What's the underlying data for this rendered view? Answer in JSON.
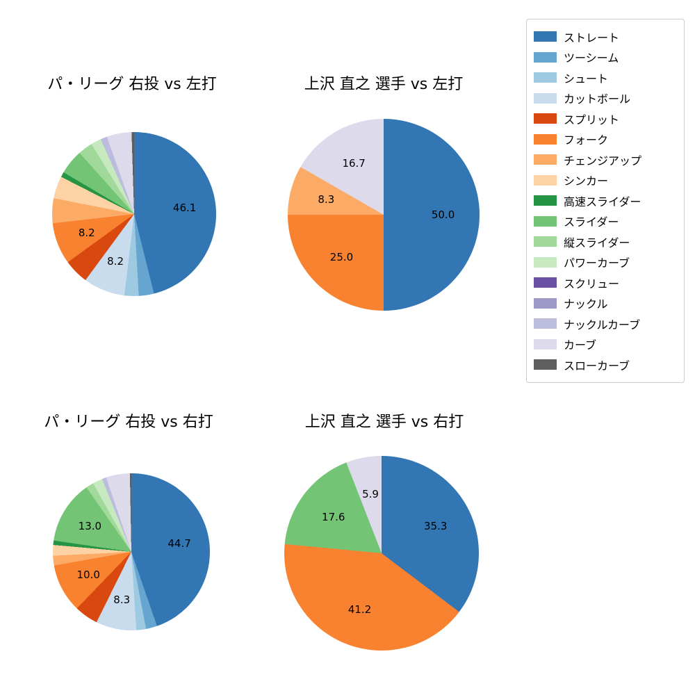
{
  "legend": {
    "items": [
      {
        "label": "ストレート",
        "color": "#3276b4"
      },
      {
        "label": "ツーシーム",
        "color": "#66a5cf"
      },
      {
        "label": "シュート",
        "color": "#9ecae1"
      },
      {
        "label": "カットボール",
        "color": "#c9dcee"
      },
      {
        "label": "スプリット",
        "color": "#d9480f"
      },
      {
        "label": "フォーク",
        "color": "#f8822f"
      },
      {
        "label": "チェンジアップ",
        "color": "#fbab66"
      },
      {
        "label": "シンカー",
        "color": "#fdd3a6"
      },
      {
        "label": "高速スライダー",
        "color": "#259444"
      },
      {
        "label": "スライダー",
        "color": "#74c476"
      },
      {
        "label": "縦スライダー",
        "color": "#a1d99b"
      },
      {
        "label": "パワーカーブ",
        "color": "#c7e9c0"
      },
      {
        "label": "スクリュー",
        "color": "#6a51a3"
      },
      {
        "label": "ナックル",
        "color": "#9e9ac8"
      },
      {
        "label": "ナックルカーブ",
        "color": "#bcbddc"
      },
      {
        "label": "カーブ",
        "color": "#dcdaeb"
      },
      {
        "label": "スローカーブ",
        "color": "#5e5e5e"
      }
    ]
  },
  "chart_data": [
    {
      "type": "pie",
      "title": "パ・リーグ 右投 vs 左打",
      "start_angle_deg": 90,
      "direction": "clockwise",
      "label_min_pct": 5,
      "slices": [
        {
          "name": "ストレート",
          "value": 46.1
        },
        {
          "name": "ツーシーム",
          "value": 3.0
        },
        {
          "name": "シュート",
          "value": 2.8
        },
        {
          "name": "カットボール",
          "value": 8.2
        },
        {
          "name": "スプリット",
          "value": 4.9
        },
        {
          "name": "フォーク",
          "value": 8.2
        },
        {
          "name": "チェンジアップ",
          "value": 4.9
        },
        {
          "name": "シンカー",
          "value": 4.4
        },
        {
          "name": "高速スライダー",
          "value": 1.0
        },
        {
          "name": "スライダー",
          "value": 4.9
        },
        {
          "name": "縦スライダー",
          "value": 2.9
        },
        {
          "name": "パワーカーブ",
          "value": 2.0
        },
        {
          "name": "ナックルカーブ",
          "value": 1.3
        },
        {
          "name": "カーブ",
          "value": 4.9
        },
        {
          "name": "スローカーブ",
          "value": 0.5
        }
      ]
    },
    {
      "type": "pie",
      "title": "上沢 直之 選手 vs 左打",
      "start_angle_deg": 90,
      "direction": "clockwise",
      "label_min_pct": 5,
      "slices": [
        {
          "name": "ストレート",
          "value": 50.0
        },
        {
          "name": "フォーク",
          "value": 25.0
        },
        {
          "name": "チェンジアップ",
          "value": 8.3
        },
        {
          "name": "カーブ",
          "value": 16.7
        }
      ]
    },
    {
      "type": "pie",
      "title": "パ・リーグ 右投 vs 右打",
      "start_angle_deg": 90,
      "direction": "clockwise",
      "label_min_pct": 5,
      "slices": [
        {
          "name": "ストレート",
          "value": 44.7
        },
        {
          "name": "ツーシーム",
          "value": 2.3
        },
        {
          "name": "シュート",
          "value": 2.0
        },
        {
          "name": "カットボール",
          "value": 8.3
        },
        {
          "name": "スプリット",
          "value": 4.9
        },
        {
          "name": "フォーク",
          "value": 10.0
        },
        {
          "name": "チェンジアップ",
          "value": 2.0
        },
        {
          "name": "シンカー",
          "value": 2.2
        },
        {
          "name": "高速スライダー",
          "value": 0.9
        },
        {
          "name": "スライダー",
          "value": 13.0
        },
        {
          "name": "縦スライダー",
          "value": 1.6
        },
        {
          "name": "パワーカーブ",
          "value": 2.0
        },
        {
          "name": "ナックルカーブ",
          "value": 0.9
        },
        {
          "name": "カーブ",
          "value": 4.9
        },
        {
          "name": "スローカーブ",
          "value": 0.3
        }
      ]
    },
    {
      "type": "pie",
      "title": "上沢 直之 選手 vs 右打",
      "start_angle_deg": 90,
      "direction": "clockwise",
      "label_min_pct": 5,
      "slices": [
        {
          "name": "ストレート",
          "value": 35.3
        },
        {
          "name": "フォーク",
          "value": 41.2
        },
        {
          "name": "スライダー",
          "value": 17.6
        },
        {
          "name": "カーブ",
          "value": 5.9
        }
      ]
    }
  ]
}
